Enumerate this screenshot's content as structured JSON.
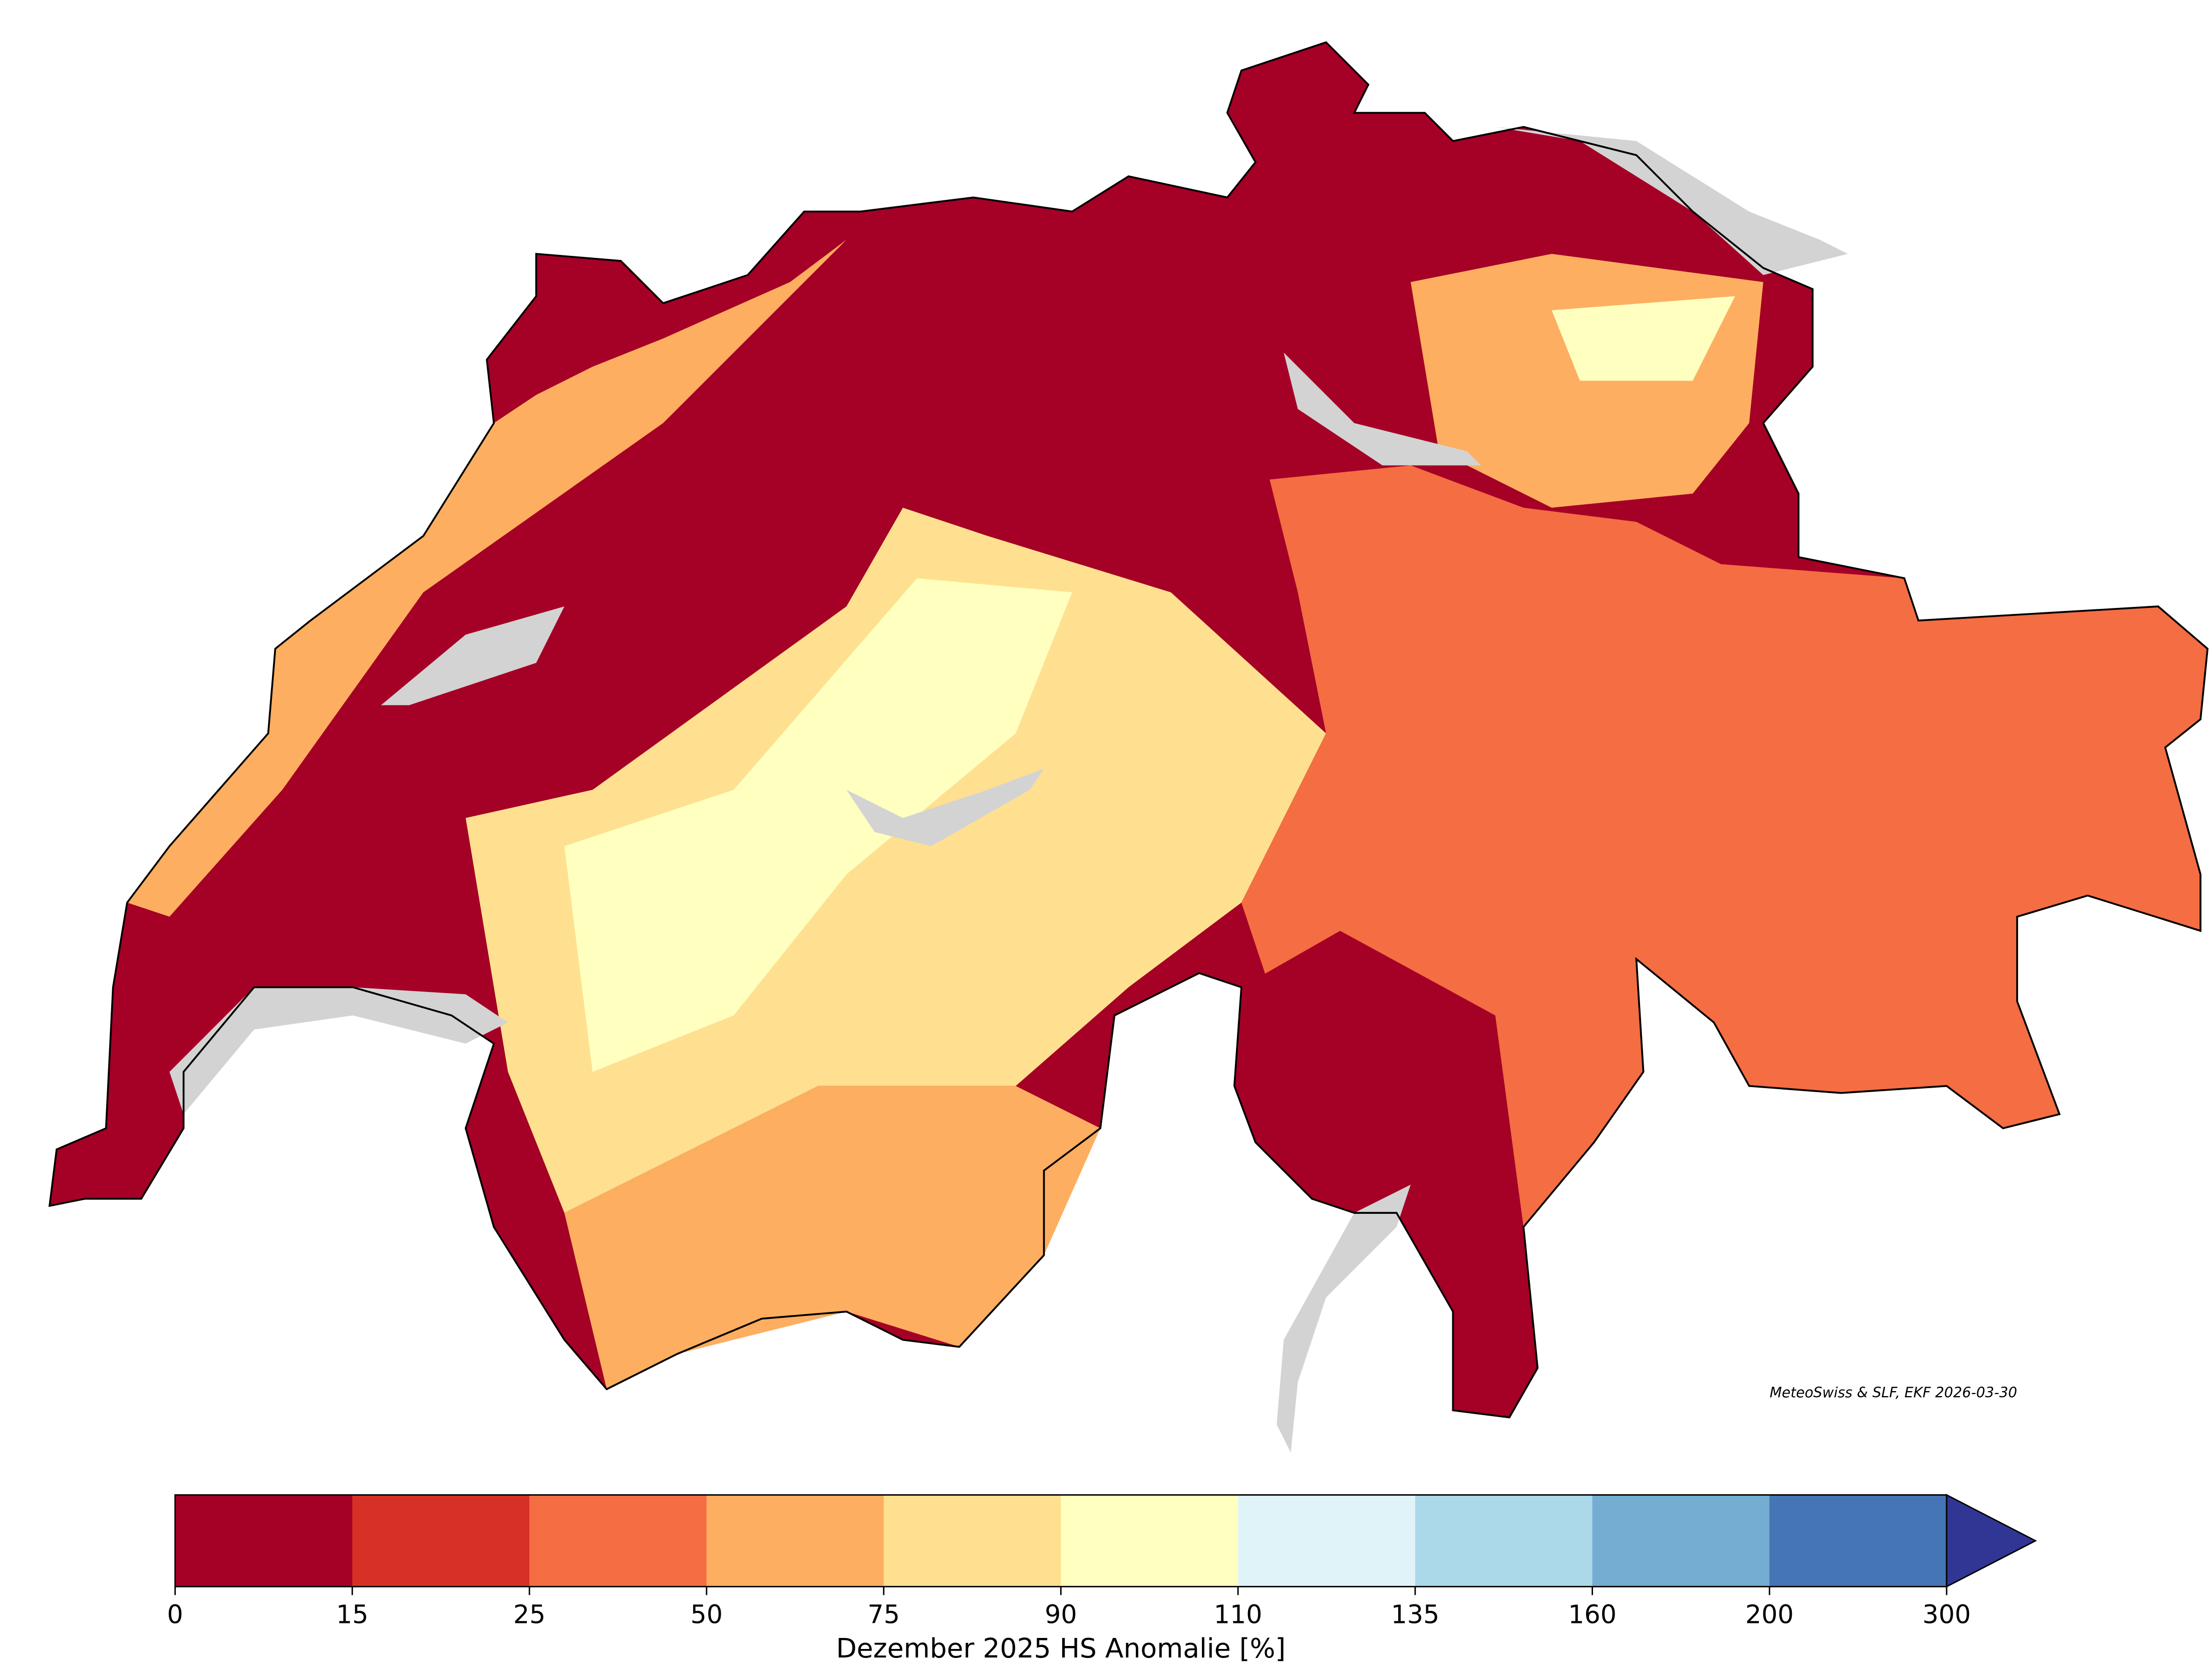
{
  "map": {
    "colorbar": {
      "bounds": [
        0,
        15,
        25,
        50,
        75,
        90,
        110,
        135,
        160,
        200,
        300
      ],
      "colors": [
        "#a50026",
        "#d73027",
        "#f46d43",
        "#fdae61",
        "#fee090",
        "#ffffbf",
        "#e0f3f8",
        "#abd9e9",
        "#74add1",
        "#4575b4"
      ],
      "extend_color": "#313695",
      "label": "Dezember 2025 HS Anomalie [%]"
    },
    "credit": "MeteoSwiss & SLF, EKF 2026-03-30",
    "lake_color": "#d3d3d3"
  }
}
